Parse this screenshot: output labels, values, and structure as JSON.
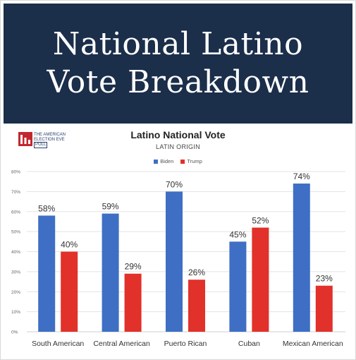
{
  "header": {
    "title_line1": "National Latino",
    "title_line2": "Vote Breakdown"
  },
  "logo": {
    "line1": "THE AMERICAN",
    "line2": "ELECTION EVE",
    "line3": "POLL"
  },
  "colors": {
    "banner": "#1b2e4a",
    "biden": "#3e6fc4",
    "trump": "#e1312a",
    "grid": "#e3e3e3",
    "logo_red": "#c3272e"
  },
  "chart_data": {
    "type": "bar",
    "title": "Latino National Vote",
    "subtitle": "LATIN ORIGIN",
    "categories": [
      "South American",
      "Central American",
      "Puerto Rican",
      "Cuban",
      "Mexican American"
    ],
    "series": [
      {
        "name": "Biden",
        "values": [
          58,
          59,
          70,
          45,
          74
        ],
        "labels": [
          "58%",
          "59%",
          "70%",
          "45%",
          "74%"
        ]
      },
      {
        "name": "Trump",
        "values": [
          40,
          29,
          26,
          52,
          23
        ],
        "labels": [
          "40%",
          "29%",
          "26%",
          "52%",
          "23%"
        ]
      }
    ],
    "y_ticks": [
      "0%",
      "10%",
      "20%",
      "30%",
      "40%",
      "50%",
      "60%",
      "70%",
      "80%"
    ],
    "ylim": [
      0,
      80
    ],
    "grid": true,
    "legend_position": "top-center"
  }
}
